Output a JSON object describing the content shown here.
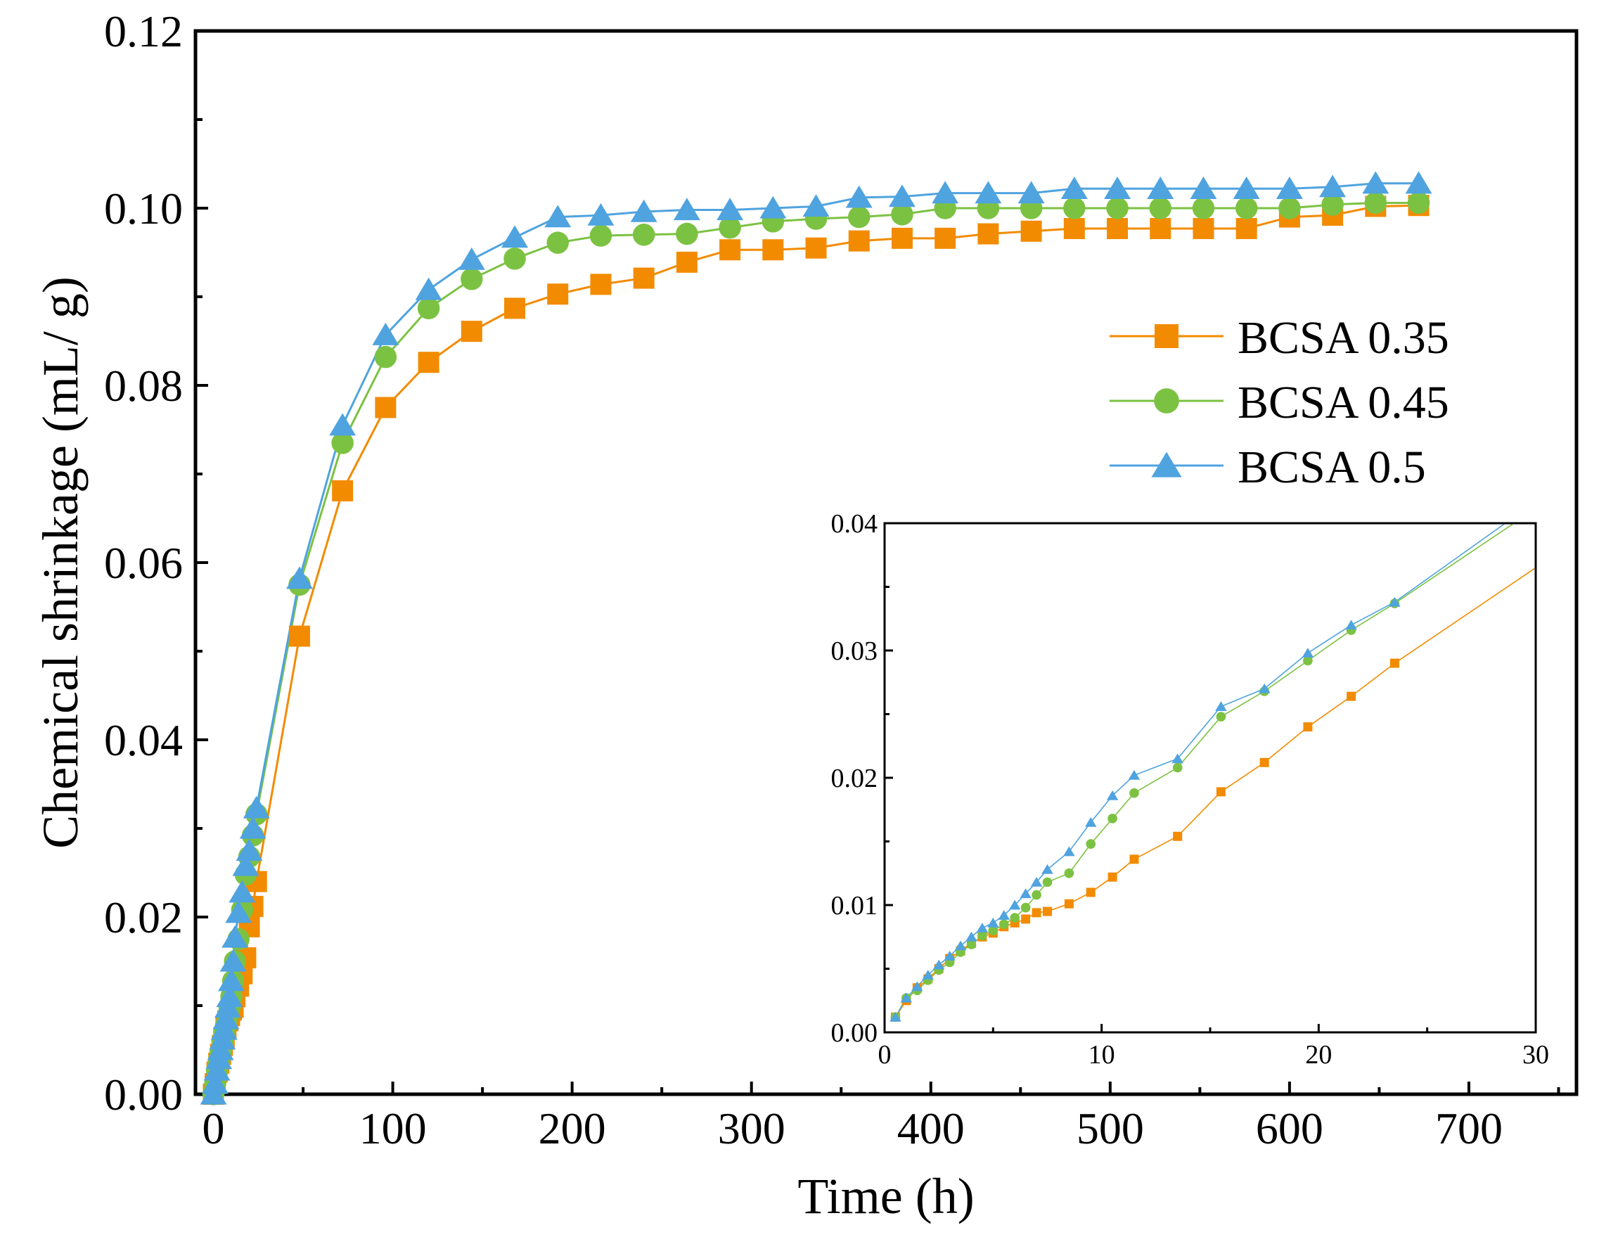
{
  "chart_data": [
    {
      "id": "main",
      "type": "line",
      "xlabel": "Time (h)",
      "ylabel": "Chemical shrinkage (mL/ g)",
      "xlim": [
        -10,
        760
      ],
      "ylim": [
        0,
        0.12
      ],
      "xticks": [
        0,
        100,
        200,
        300,
        400,
        500,
        600,
        700
      ],
      "xtick_labels": [
        "0",
        "100",
        "200",
        "300",
        "400",
        "500",
        "600",
        "700"
      ],
      "yticks": [
        0,
        0.02,
        0.04,
        0.06,
        0.08,
        0.1,
        0.12
      ],
      "ytick_labels": [
        "0.00",
        "0.02",
        "0.04",
        "0.06",
        "0.08",
        "0.10",
        "0.12"
      ],
      "legend_position": "right",
      "series": [
        {
          "name": "BCSA 0.35",
          "color": "#f28b00",
          "marker": "square",
          "x": [
            0,
            1,
            2,
            3,
            4,
            5,
            6,
            7,
            8,
            9,
            10,
            11,
            12,
            14,
            16,
            18,
            20,
            22,
            24,
            48,
            72,
            96,
            120,
            144,
            168,
            192,
            216,
            240,
            264,
            288,
            312,
            336,
            360,
            384,
            408,
            432,
            456,
            480,
            504,
            528,
            552,
            576,
            600,
            624,
            648,
            672
          ],
          "y": [
            0,
            0.0012,
            0.0025,
            0.0035,
            0.0045,
            0.0055,
            0.0064,
            0.0075,
            0.0083,
            0.0089,
            0.0095,
            0.0098,
            0.011,
            0.0122,
            0.0136,
            0.0154,
            0.0189,
            0.0212,
            0.024,
            0.0517,
            0.0681,
            0.0775,
            0.0826,
            0.0861,
            0.0887,
            0.0903,
            0.0914,
            0.0921,
            0.0939,
            0.0953,
            0.0953,
            0.0955,
            0.0963,
            0.0966,
            0.0966,
            0.0971,
            0.0974,
            0.0977,
            0.0977,
            0.0977,
            0.0977,
            0.0977,
            0.099,
            0.0992,
            0.1002,
            0.1003
          ]
        },
        {
          "name": "BCSA 0.45",
          "color": "#7cc242",
          "marker": "circle",
          "x": [
            0,
            1,
            2,
            3,
            4,
            5,
            6,
            7,
            8,
            9,
            10,
            11,
            12,
            14,
            16,
            18,
            20,
            22,
            24,
            48,
            72,
            96,
            120,
            144,
            168,
            192,
            216,
            240,
            264,
            288,
            312,
            336,
            360,
            384,
            408,
            432,
            456,
            480,
            504,
            528,
            552,
            576,
            600,
            624,
            648,
            672
          ],
          "y": [
            0,
            0.0012,
            0.0027,
            0.0038,
            0.0048,
            0.006,
            0.007,
            0.0078,
            0.0088,
            0.0098,
            0.011,
            0.0128,
            0.015,
            0.0175,
            0.0208,
            0.0248,
            0.0268,
            0.0292,
            0.0316,
            0.0575,
            0.0735,
            0.0832,
            0.0887,
            0.092,
            0.0943,
            0.0961,
            0.0969,
            0.097,
            0.0971,
            0.0978,
            0.0985,
            0.0988,
            0.099,
            0.0993,
            0.1,
            0.1,
            0.1,
            0.1,
            0.1,
            0.1,
            0.1,
            0.1,
            0.1,
            0.1004,
            0.1006,
            0.1006
          ]
        },
        {
          "name": "BCSA 0.5",
          "color": "#4fa3df",
          "marker": "triangle",
          "x": [
            0,
            1,
            2,
            3,
            4,
            5,
            6,
            7,
            8,
            9,
            10,
            11,
            12,
            14,
            16,
            18,
            20,
            22,
            24,
            48,
            72,
            96,
            120,
            144,
            168,
            192,
            216,
            240,
            264,
            288,
            312,
            336,
            360,
            384,
            408,
            432,
            456,
            480,
            504,
            528,
            552,
            576,
            600,
            624,
            648,
            672
          ],
          "y": [
            0,
            0.0012,
            0.0027,
            0.004,
            0.005,
            0.0062,
            0.0073,
            0.0085,
            0.0098,
            0.011,
            0.0128,
            0.015,
            0.0177,
            0.0205,
            0.0228,
            0.0258,
            0.0275,
            0.03,
            0.0323,
            0.0582,
            0.0755,
            0.0857,
            0.0908,
            0.0942,
            0.0967,
            0.099,
            0.0992,
            0.0996,
            0.0998,
            0.0998,
            0.1,
            0.1002,
            0.1012,
            0.1013,
            0.1017,
            0.1017,
            0.1017,
            0.1022,
            0.1022,
            0.1022,
            0.1022,
            0.1022,
            0.1022,
            0.1024,
            0.1028,
            0.1028
          ]
        }
      ]
    },
    {
      "id": "inset",
      "type": "line",
      "xlim": [
        0,
        30
      ],
      "ylim": [
        0,
        0.04
      ],
      "xticks": [
        0,
        10,
        20,
        30
      ],
      "xtick_labels": [
        "0",
        "10",
        "20",
        "30"
      ],
      "yticks": [
        0,
        0.01,
        0.02,
        0.03,
        0.04
      ],
      "ytick_labels": [
        "0.00",
        "0.01",
        "0.02",
        "0.03",
        "0.04"
      ],
      "series": [
        {
          "name": "BCSA 0.35",
          "color": "#f28b00",
          "marker": "square",
          "x": [
            0.5,
            1.0,
            1.5,
            2.0,
            2.5,
            3.0,
            3.5,
            4.0,
            4.5,
            5.0,
            5.5,
            6.0,
            6.5,
            7.0,
            7.5,
            8.5,
            9.5,
            10.5,
            11.5,
            13.5,
            15.5,
            17.5,
            19.5,
            21.5,
            23.5,
            30
          ],
          "y": [
            0.0012,
            0.0025,
            0.0035,
            0.0042,
            0.005,
            0.0058,
            0.0064,
            0.007,
            0.0075,
            0.0078,
            0.0083,
            0.0086,
            0.0089,
            0.0094,
            0.0095,
            0.0101,
            0.011,
            0.0122,
            0.0136,
            0.0154,
            0.0189,
            0.0212,
            0.024,
            0.0264,
            0.029,
            0.0365
          ],
          "marker_count": 25
        },
        {
          "name": "BCSA 0.45",
          "color": "#7cc242",
          "marker": "circle",
          "x": [
            0.5,
            1.0,
            1.5,
            2.0,
            2.5,
            3.0,
            3.5,
            4.0,
            4.5,
            5.0,
            5.5,
            6.0,
            6.5,
            7.0,
            7.5,
            8.5,
            9.5,
            10.5,
            11.5,
            13.5,
            15.5,
            17.5,
            19.5,
            21.5,
            23.5,
            29
          ],
          "y": [
            0.0012,
            0.0027,
            0.0033,
            0.0041,
            0.0049,
            0.0055,
            0.0063,
            0.0069,
            0.0076,
            0.008,
            0.0085,
            0.009,
            0.0098,
            0.0108,
            0.0118,
            0.0125,
            0.0148,
            0.0168,
            0.0188,
            0.0208,
            0.0248,
            0.0268,
            0.0292,
            0.0316,
            0.0337,
            0.04
          ],
          "marker_count": 25
        },
        {
          "name": "BCSA 0.5",
          "color": "#4fa3df",
          "marker": "triangle",
          "x": [
            0.5,
            1.0,
            1.5,
            2.0,
            2.5,
            3.0,
            3.5,
            4.0,
            4.5,
            5.0,
            5.5,
            6.0,
            6.5,
            7.0,
            7.5,
            8.5,
            9.5,
            10.5,
            11.5,
            13.5,
            15.5,
            17.5,
            19.5,
            21.5,
            23.5,
            28.6
          ],
          "y": [
            0.0012,
            0.0027,
            0.0036,
            0.0045,
            0.0053,
            0.006,
            0.0068,
            0.0075,
            0.0082,
            0.0086,
            0.0092,
            0.01,
            0.0109,
            0.0118,
            0.0128,
            0.0142,
            0.0165,
            0.0186,
            0.0202,
            0.0215,
            0.0256,
            0.027,
            0.0298,
            0.032,
            0.0338,
            0.04
          ],
          "marker_count": 25
        }
      ]
    }
  ]
}
